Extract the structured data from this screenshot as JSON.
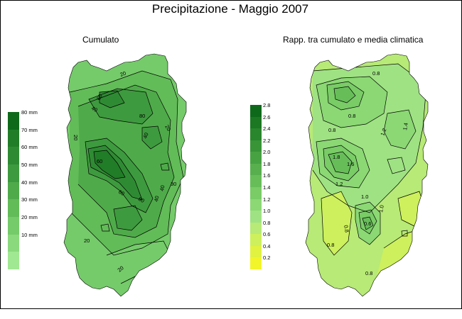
{
  "title": "Precipitazione - Maggio 2007",
  "left_panel": {
    "title": "Cumulato",
    "legend": [
      {
        "label": "80 mm",
        "color": "#0e6a1a"
      },
      {
        "label": "70 mm",
        "color": "#217d27"
      },
      {
        "label": "60 mm",
        "color": "#2f8b33"
      },
      {
        "label": "50 mm",
        "color": "#3e9a3e"
      },
      {
        "label": "40 mm",
        "color": "#4fab4a"
      },
      {
        "label": "30 mm",
        "color": "#62bc58"
      },
      {
        "label": "20 mm",
        "color": "#75cb6a"
      },
      {
        "label": "10 mm",
        "color": "#8ad97c"
      },
      {
        "label": "",
        "color": "#a1e892"
      }
    ],
    "contour_labels": [
      "20",
      "40",
      "60",
      "80",
      "20",
      "40",
      "60",
      "60",
      "80",
      "40",
      "30",
      "40",
      "20",
      "20",
      "20"
    ]
  },
  "right_panel": {
    "title": "Rapp. tra cumulato e media climatica",
    "legend": [
      {
        "label": "2.8",
        "color": "#0e6a1a"
      },
      {
        "label": "2.6",
        "color": "#1c7822"
      },
      {
        "label": "2.4",
        "color": "#2a862c"
      },
      {
        "label": "2.2",
        "color": "#389437"
      },
      {
        "label": "2.0",
        "color": "#47a242"
      },
      {
        "label": "1.8",
        "color": "#57b04d"
      },
      {
        "label": "1.6",
        "color": "#67be59"
      },
      {
        "label": "1.4",
        "color": "#79cc66"
      },
      {
        "label": "1.2",
        "color": "#8bd874"
      },
      {
        "label": "1.0",
        "color": "#9fe283"
      },
      {
        "label": "0.8",
        "color": "#b7ea76"
      },
      {
        "label": "0.6",
        "color": "#cdf05c"
      },
      {
        "label": "0.4",
        "color": "#e1f240"
      },
      {
        "label": "0.2",
        "color": "#f2f529"
      }
    ],
    "contour_labels": [
      "0.8",
      "1.8",
      "0.8",
      "1.2",
      "1.0",
      "0.8",
      "1.6",
      "1.2",
      "1.0",
      "1.4",
      "0.8",
      "0.6",
      "0.8",
      "0.8"
    ]
  },
  "colors": {
    "frame": "#000000",
    "contour": "#000000",
    "background": "#ffffff"
  }
}
